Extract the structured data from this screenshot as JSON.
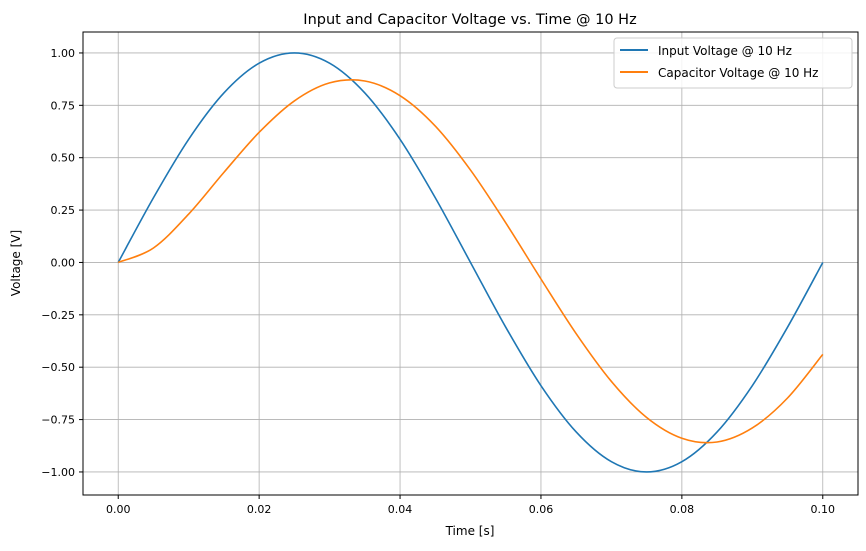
{
  "chart_data": {
    "type": "line",
    "title": "Input and Capacitor Voltage vs. Time @ 10 Hz",
    "xlabel": "Time [s]",
    "ylabel": "Voltage [V]",
    "xlim": [
      -0.005,
      0.105
    ],
    "ylim": [
      -1.11,
      1.1
    ],
    "xticks": [
      0.0,
      0.02,
      0.04,
      0.06,
      0.08,
      0.1
    ],
    "xtick_labels": [
      "0.00",
      "0.02",
      "0.04",
      "0.06",
      "0.08",
      "0.10"
    ],
    "yticks": [
      -1.0,
      -0.75,
      -0.5,
      -0.25,
      0.0,
      0.25,
      0.5,
      0.75,
      1.0
    ],
    "ytick_labels": [
      "−1.00",
      "−0.75",
      "−0.50",
      "−0.25",
      "0.00",
      "0.25",
      "0.50",
      "0.75",
      "1.00"
    ],
    "grid": true,
    "legend_position": "top-right",
    "x": [
      0,
      0.005,
      0.01,
      0.015,
      0.02,
      0.025,
      0.03,
      0.035,
      0.04,
      0.045,
      0.05,
      0.055,
      0.06,
      0.065,
      0.07,
      0.075,
      0.08,
      0.085,
      0.09,
      0.095,
      0.1
    ],
    "series": [
      {
        "name": "Input Voltage @ 10 Hz",
        "color": "#1f77b4",
        "values": [
          0,
          0.309,
          0.588,
          0.809,
          0.951,
          1,
          0.951,
          0.809,
          0.588,
          0.309,
          0,
          -0.309,
          -0.588,
          -0.809,
          -0.951,
          -1,
          -0.951,
          -0.809,
          -0.588,
          -0.309,
          0
        ]
      },
      {
        "name": "Capacitor Voltage @ 10 Hz",
        "color": "#ff7f0e",
        "values": [
          0,
          0.069,
          0.231,
          0.43,
          0.621,
          0.771,
          0.857,
          0.866,
          0.796,
          0.651,
          0.441,
          0.189,
          -0.079,
          -0.34,
          -0.568,
          -0.74,
          -0.839,
          -0.857,
          -0.79,
          -0.647,
          -0.439
        ]
      }
    ]
  }
}
